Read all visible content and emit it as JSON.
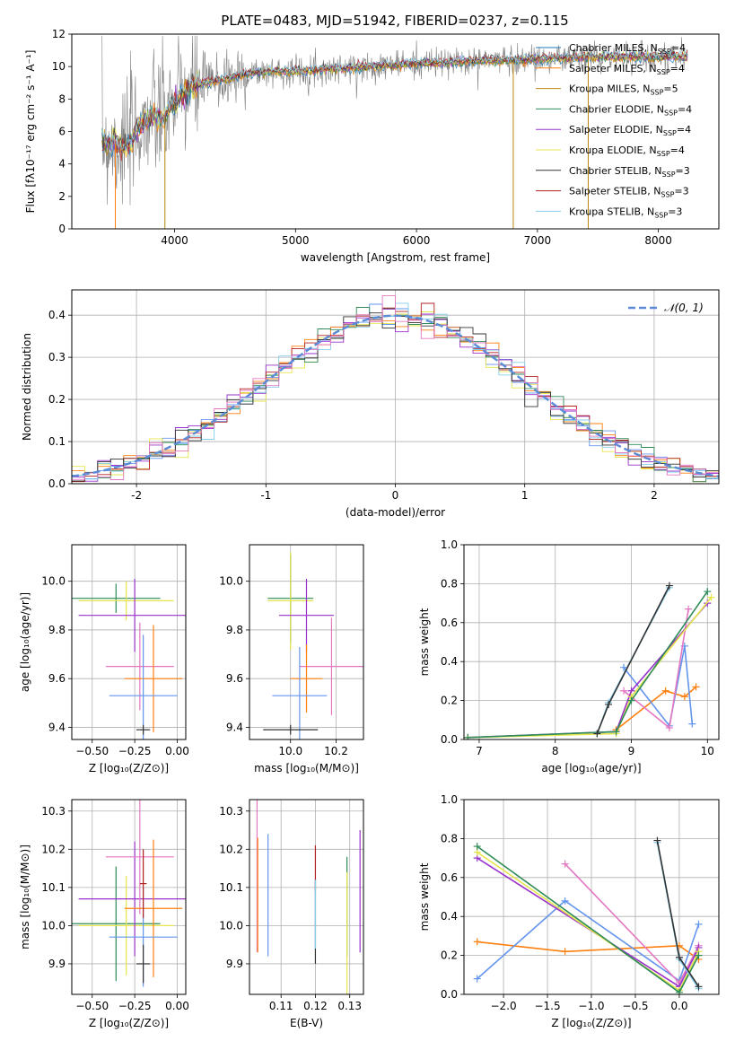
{
  "figure_title": "PLATE=0483, MJD=51942, FIBERID=0237, z=0.115",
  "colors": {
    "grid": "#b0b0b0"
  },
  "chart_data": [
    {
      "id": "spectrum",
      "type": "line",
      "title": "PLATE=0483, MJD=51942, FIBERID=0237, z=0.115",
      "xlabel": "wavelength [Angstrom, rest frame]",
      "ylabel": "Flux [fλ10⁻¹⁷ erg cm⁻² s⁻¹ A⁻¹]",
      "xlim": [
        3150,
        8500
      ],
      "ylim": [
        0,
        12
      ],
      "xticks": [
        4000,
        5000,
        6000,
        7000,
        8000
      ],
      "yticks": [
        0,
        2,
        4,
        6,
        8,
        10,
        12
      ],
      "legend_position": "right",
      "data": {
        "x": [
          3400,
          3500,
          3600,
          3700,
          3800,
          3900,
          4000,
          4100,
          4200,
          4400,
          4600,
          4800,
          5000,
          5200,
          5400,
          5600,
          5800,
          6000,
          6200,
          6400,
          6600,
          6800,
          7000,
          7200,
          7400,
          7600,
          7800,
          8000,
          8200
        ],
        "y": [
          5.4,
          5.3,
          5.0,
          6.2,
          6.9,
          6.8,
          7.8,
          8.5,
          8.9,
          9.2,
          9.6,
          9.7,
          9.7,
          9.8,
          9.9,
          10.0,
          10.1,
          10.2,
          10.2,
          10.3,
          10.4,
          10.4,
          10.5,
          10.5,
          10.6,
          10.6,
          10.6,
          10.6,
          10.6
        ]
      },
      "drops_to_zero_at": [
        3510,
        3920,
        6800,
        7420
      ],
      "legend": [
        {
          "label": "Chabrier MILES, N_SSP=4",
          "color": "#1f77b4"
        },
        {
          "label": "Salpeter MILES, N_SSP=4",
          "color": "#ff7f0e"
        },
        {
          "label": "Kroupa MILES, N_SSP=5",
          "color": "#b8860b"
        },
        {
          "label": "Chabrier ELODIE, N_SSP=4",
          "color": "#2e8b57"
        },
        {
          "label": "Salpeter ELODIE, N_SSP=4",
          "color": "#9932cc"
        },
        {
          "label": "Kroupa ELODIE, N_SSP=4",
          "color": "#e5e54c"
        },
        {
          "label": "Chabrier STELIB, N_SSP=3",
          "color": "#333333"
        },
        {
          "label": "Salpeter STELIB, N_SSP=3",
          "color": "#b22222"
        },
        {
          "label": "Kroupa STELIB, N_SSP=3",
          "color": "#87ceeb"
        }
      ]
    },
    {
      "id": "residuals",
      "type": "line",
      "xlabel": "(data-model)/error",
      "ylabel": "Normed distribution",
      "xlim": [
        -2.5,
        2.5
      ],
      "ylim": [
        0,
        0.46
      ],
      "xticks": [
        -2,
        -1,
        0,
        1,
        2
      ],
      "yticks": [
        0.0,
        0.1,
        0.2,
        0.3,
        0.4
      ],
      "legend": "𝒩(0, 1)",
      "gaussian": {
        "mu": 0,
        "sigma": 1
      },
      "hist_bin_width": 0.1
    },
    {
      "id": "age_vs_Z",
      "type": "scatter",
      "xlabel": "Z [log₁₀(Z/Z⊙)]",
      "ylabel": "age  [log₁₀(age/yr)]",
      "xlim": [
        -0.62,
        0.05
      ],
      "ylim": [
        9.35,
        10.15
      ],
      "xticks": [
        -0.5,
        -0.25,
        0.0
      ],
      "xtick_labels": [
        "−0.50",
        "−0.25",
        "0.00"
      ],
      "yticks": [
        9.4,
        9.6,
        9.8,
        10.0
      ],
      "points": [
        {
          "x": -0.36,
          "y": 9.93,
          "xerr": 0.26,
          "yerr": 0.06,
          "color": "#2e8b57"
        },
        {
          "x": -0.3,
          "y": 9.92,
          "xerr": 0.28,
          "yerr": 0.08,
          "color": "#e5e54c"
        },
        {
          "x": -0.25,
          "y": 9.86,
          "xerr": 0.33,
          "yerr": 0.15,
          "color": "#9932cc"
        },
        {
          "x": -0.22,
          "y": 9.65,
          "xerr": 0.2,
          "yerr": 0.18,
          "color": "#e377c2"
        },
        {
          "x": -0.14,
          "y": 9.6,
          "xerr": 0.17,
          "yerr": 0.22,
          "color": "#ff7f0e"
        },
        {
          "x": -0.2,
          "y": 9.53,
          "xerr": 0.2,
          "yerr": 0.25,
          "color": "#6495ed"
        },
        {
          "x": -0.2,
          "y": 9.39,
          "xerr": 0.04,
          "yerr": 0.02,
          "color": "#333333"
        }
      ]
    },
    {
      "id": "age_vs_mass",
      "type": "scatter",
      "xlabel": "mass [log₁₀(M/M⊙)]",
      "xlim": [
        9.82,
        10.32
      ],
      "ylim": [
        9.35,
        10.15
      ],
      "xticks": [
        10.0,
        10.2
      ],
      "xtick_labels": [
        "10.0",
        "10.2"
      ],
      "yticks": [
        9.4,
        9.6,
        9.8,
        10.0
      ],
      "points": [
        {
          "x": 10.0,
          "y": 9.93,
          "xerr": 0.1,
          "yerr": 0.18,
          "color": "#2e8b57"
        },
        {
          "x": 10.0,
          "y": 9.92,
          "xerr": 0.1,
          "yerr": 0.2,
          "color": "#e5e54c"
        },
        {
          "x": 10.07,
          "y": 9.86,
          "xerr": 0.12,
          "yerr": 0.15,
          "color": "#9932cc"
        },
        {
          "x": 10.18,
          "y": 9.65,
          "xerr": 0.14,
          "yerr": 0.2,
          "color": "#e377c2"
        },
        {
          "x": 10.07,
          "y": 9.6,
          "xerr": 0.07,
          "yerr": 0.14,
          "color": "#ff7f0e"
        },
        {
          "x": 10.04,
          "y": 9.53,
          "xerr": 0.12,
          "yerr": 0.2,
          "color": "#6495ed"
        },
        {
          "x": 10.0,
          "y": 9.39,
          "xerr": 0.12,
          "yerr": 0.02,
          "color": "#333333"
        }
      ]
    },
    {
      "id": "weight_vs_age",
      "type": "line",
      "xlabel": "age  [log₁₀(age/yr)]",
      "ylabel": "mass weight",
      "xlim": [
        6.8,
        10.15
      ],
      "ylim": [
        0,
        1.0
      ],
      "xticks": [
        7,
        8,
        9,
        10
      ],
      "yticks": [
        0.0,
        0.2,
        0.4,
        0.6,
        0.8,
        1.0
      ],
      "series": [
        {
          "color": "#ff7f0e",
          "x": [
            8.8,
            9.45,
            9.7,
            9.85
          ],
          "y": [
            0.05,
            0.25,
            0.22,
            0.27
          ]
        },
        {
          "color": "#6495ed",
          "x": [
            8.9,
            9.5,
            9.7,
            9.8
          ],
          "y": [
            0.37,
            0.07,
            0.48,
            0.08
          ]
        },
        {
          "color": "#e377c2",
          "x": [
            8.9,
            9.5,
            9.75
          ],
          "y": [
            0.25,
            0.06,
            0.67
          ]
        },
        {
          "color": "#9932cc",
          "x": [
            6.85,
            8.8,
            9.0,
            10.0
          ],
          "y": [
            0.01,
            0.04,
            0.25,
            0.7
          ]
        },
        {
          "color": "#e5e54c",
          "x": [
            6.85,
            8.8,
            9.0,
            10.05
          ],
          "y": [
            0.01,
            0.03,
            0.22,
            0.73
          ]
        },
        {
          "color": "#2e8b57",
          "x": [
            6.85,
            8.8,
            9.0,
            10.0
          ],
          "y": [
            0.01,
            0.04,
            0.2,
            0.76
          ]
        },
        {
          "color": "#87ceeb",
          "x": [
            8.55,
            8.7,
            9.5
          ],
          "y": [
            0.03,
            0.19,
            0.78
          ]
        },
        {
          "color": "#333333",
          "x": [
            8.55,
            8.7,
            9.5
          ],
          "y": [
            0.03,
            0.18,
            0.79
          ]
        }
      ]
    },
    {
      "id": "mass_vs_Z",
      "type": "scatter",
      "xlabel": "Z [log₁₀(Z/Z⊙)]",
      "ylabel": "mass [log₁₀(M/M⊙)]",
      "xlim": [
        -0.62,
        0.05
      ],
      "ylim": [
        9.82,
        10.33
      ],
      "xticks": [
        -0.5,
        -0.25,
        0.0
      ],
      "xtick_labels": [
        "−0.50",
        "−0.25",
        "0.00"
      ],
      "yticks": [
        9.9,
        10.0,
        10.1,
        10.2,
        10.3
      ],
      "points": [
        {
          "x": -0.36,
          "y": 10.005,
          "xerr": 0.26,
          "yerr": 0.15,
          "color": "#2e8b57"
        },
        {
          "x": -0.3,
          "y": 10.0,
          "xerr": 0.28,
          "yerr": 0.13,
          "color": "#e5e54c"
        },
        {
          "x": -0.25,
          "y": 10.07,
          "xerr": 0.33,
          "yerr": 0.15,
          "color": "#9932cc"
        },
        {
          "x": -0.22,
          "y": 10.18,
          "xerr": 0.2,
          "yerr": 0.15,
          "color": "#e377c2"
        },
        {
          "x": -0.14,
          "y": 10.045,
          "xerr": 0.17,
          "yerr": 0.18,
          "color": "#ff7f0e"
        },
        {
          "x": -0.2,
          "y": 9.97,
          "xerr": 0.2,
          "yerr": 0.13,
          "color": "#6495ed"
        },
        {
          "x": -0.2,
          "y": 9.9,
          "xerr": 0.04,
          "yerr": 0.05,
          "color": "#333333"
        },
        {
          "x": -0.2,
          "y": 10.11,
          "xerr": 0.02,
          "yerr": 0.09,
          "color": "#b22222"
        }
      ]
    },
    {
      "id": "mass_vs_ebv",
      "type": "scatter",
      "xlabel": "E(B-V)",
      "xlim": [
        0.1008,
        0.134
      ],
      "ylim": [
        9.82,
        10.33
      ],
      "xticks": [
        0.11,
        0.12,
        0.13
      ],
      "xtick_labels": [
        "0.11",
        "0.12",
        "0.13"
      ],
      "yticks": [
        9.9,
        10.0,
        10.1,
        10.2,
        10.3
      ],
      "points": [
        {
          "x": 0.103,
          "y": 10.13,
          "yerr": 0.2,
          "color": "#e377c2"
        },
        {
          "x": 0.1032,
          "y": 10.08,
          "yerr": 0.15,
          "color": "#ff7f0e"
        },
        {
          "x": 0.1062,
          "y": 10.08,
          "yerr": 0.16,
          "color": "#6495ed"
        },
        {
          "x": 0.12,
          "y": 10.15,
          "yerr": 0.06,
          "color": "#b22222"
        },
        {
          "x": 0.12,
          "y": 10.01,
          "yerr": 0.11,
          "color": "#333333"
        },
        {
          "x": 0.12,
          "y": 10.03,
          "yerr": 0.09,
          "color": "#87ceeb"
        },
        {
          "x": 0.1292,
          "y": 10.05,
          "yerr": 0.13,
          "color": "#2e8b57"
        },
        {
          "x": 0.1292,
          "y": 9.98,
          "yerr": 0.16,
          "color": "#e5e54c"
        },
        {
          "x": 0.133,
          "y": 10.09,
          "yerr": 0.16,
          "color": "#9932cc"
        }
      ]
    },
    {
      "id": "weight_vs_Z",
      "type": "line",
      "xlabel": "Z [log₁₀(Z/Z⊙)]",
      "ylabel": "mass weight",
      "xlim": [
        -2.45,
        0.45
      ],
      "ylim": [
        0,
        1.0
      ],
      "xticks": [
        -2.0,
        -1.5,
        -1.0,
        -0.5,
        0.0
      ],
      "xtick_labels": [
        "−2.0",
        "−1.5",
        "−1.0",
        "−0.5",
        "0.0"
      ],
      "yticks": [
        0.0,
        0.2,
        0.4,
        0.6,
        0.8,
        1.0
      ],
      "series": [
        {
          "color": "#ff7f0e",
          "x": [
            -2.3,
            -1.3,
            0.0,
            0.22
          ],
          "y": [
            0.27,
            0.22,
            0.25,
            0.18
          ]
        },
        {
          "color": "#6495ed",
          "x": [
            -2.3,
            -1.3,
            0.0,
            0.22
          ],
          "y": [
            0.08,
            0.48,
            0.07,
            0.36
          ]
        },
        {
          "color": "#e377c2",
          "x": [
            -1.3,
            0.0,
            0.22
          ],
          "y": [
            0.67,
            0.06,
            0.25
          ]
        },
        {
          "color": "#9932cc",
          "x": [
            -2.3,
            0.0,
            0.22
          ],
          "y": [
            0.7,
            0.04,
            0.24
          ]
        },
        {
          "color": "#e5e54c",
          "x": [
            -2.3,
            0.0,
            0.22
          ],
          "y": [
            0.73,
            0.02,
            0.22
          ]
        },
        {
          "color": "#2e8b57",
          "x": [
            -2.3,
            0.0,
            0.22
          ],
          "y": [
            0.76,
            0.01,
            0.2
          ]
        },
        {
          "color": "#87ceeb",
          "x": [
            -0.25,
            0.0,
            0.22
          ],
          "y": [
            0.78,
            0.18,
            0.03
          ]
        },
        {
          "color": "#333333",
          "x": [
            -0.25,
            0.0,
            0.22
          ],
          "y": [
            0.79,
            0.19,
            0.04
          ]
        }
      ]
    }
  ]
}
